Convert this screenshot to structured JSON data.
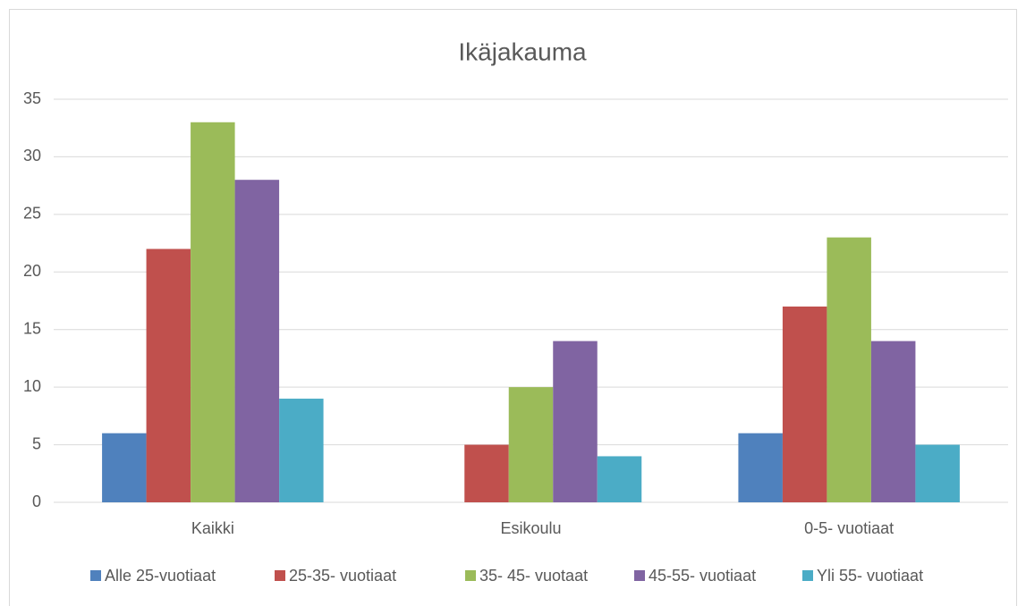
{
  "chart_data": {
    "type": "bar",
    "title": "Ikäjakauma",
    "categories": [
      "Kaikki",
      "Esikoulu",
      "0-5- vuotiaat"
    ],
    "series": [
      {
        "name": "Alle 25-vuotiaat",
        "color": "#4f81bd",
        "values": [
          6,
          null,
          6
        ]
      },
      {
        "name": "25-35- vuotiaat",
        "color": "#c0504d",
        "values": [
          22,
          5,
          17
        ]
      },
      {
        "name": "35- 45- vuotaat",
        "color": "#9bbb59",
        "values": [
          33,
          10,
          23
        ]
      },
      {
        "name": "45-55- vuotiaat",
        "color": "#8064a2",
        "values": [
          28,
          14,
          14
        ]
      },
      {
        "name": "Yli 55- vuotiaat",
        "color": "#4bacc6",
        "values": [
          9,
          4,
          5
        ]
      }
    ],
    "ylim": [
      0,
      35
    ],
    "yticks": [
      0,
      5,
      10,
      15,
      20,
      25,
      30,
      35
    ],
    "grid": true,
    "legend": "bottom"
  }
}
